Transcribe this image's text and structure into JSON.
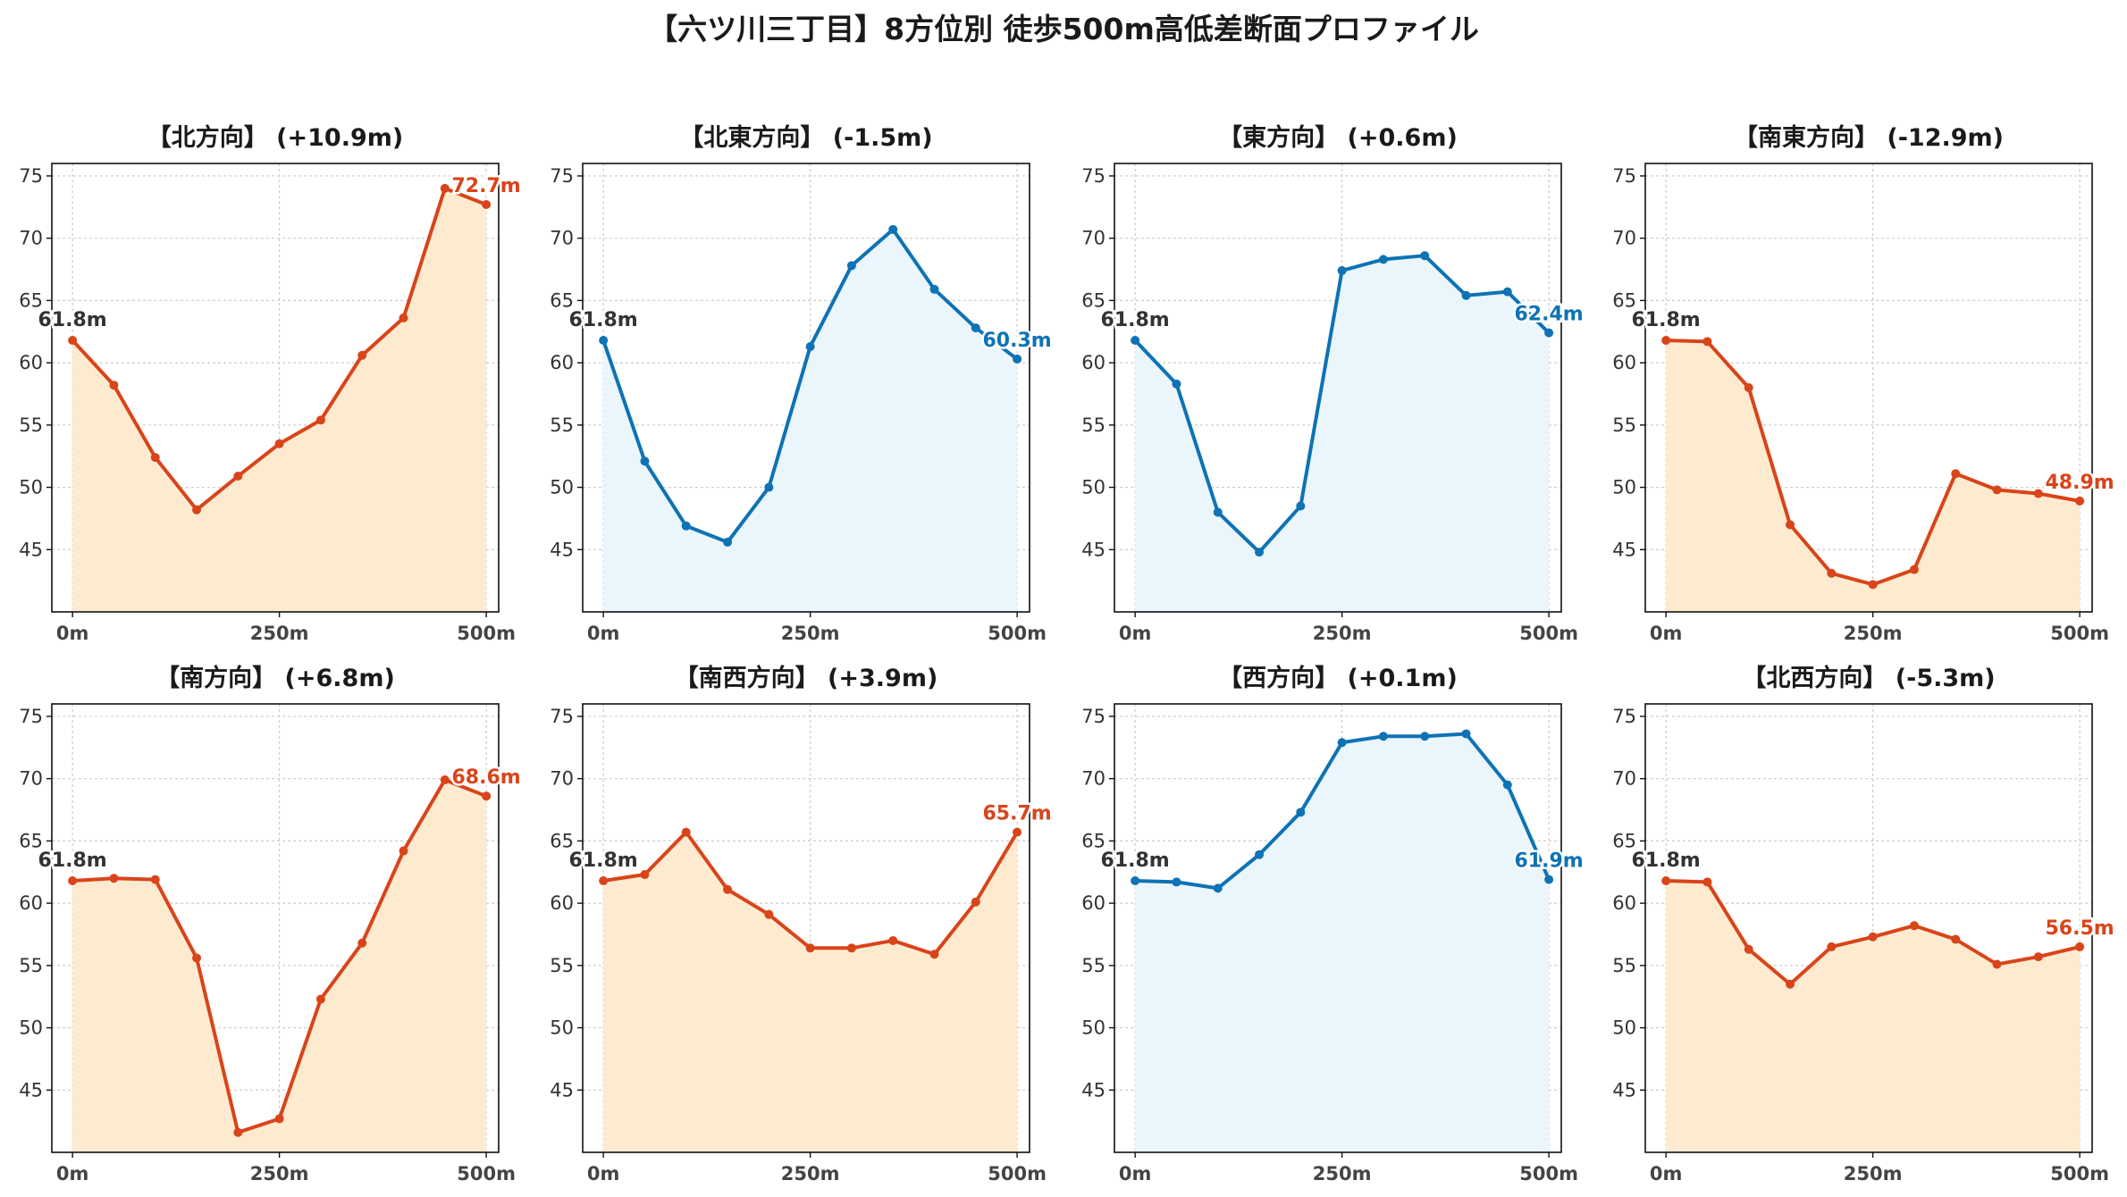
{
  "figure": {
    "title": "【六ツ川三丁目】8方位別 徒歩500m高低差断面プロファイル"
  },
  "colors": {
    "up": "#D9441A",
    "up_fill": "#FEEBCF",
    "down": "#0E72B5",
    "down_fill": "#EAF6FB",
    "start_label": "#333333"
  },
  "axis": {
    "ylim": [
      40,
      76
    ],
    "yticks": [
      45,
      50,
      55,
      60,
      65,
      70,
      75
    ],
    "xlim": [
      -25,
      515
    ],
    "xticks": [
      0,
      250,
      500
    ],
    "xtick_labels": [
      "0m",
      "250m",
      "500m"
    ],
    "grid": true
  },
  "chart_data": [
    {
      "type": "line",
      "title": "【北方向】 (+10.9m)",
      "trend": "up",
      "x": [
        0,
        50,
        100,
        150,
        200,
        250,
        300,
        350,
        400,
        450,
        500
      ],
      "y": [
        61.8,
        58.2,
        52.4,
        48.2,
        50.9,
        53.5,
        55.4,
        60.6,
        63.6,
        74.0,
        72.7
      ],
      "start_label": "61.8m",
      "end_label": "72.7m"
    },
    {
      "type": "line",
      "title": "【北東方向】 (-1.5m)",
      "trend": "down",
      "x": [
        0,
        50,
        100,
        150,
        200,
        250,
        300,
        350,
        400,
        450,
        500
      ],
      "y": [
        61.8,
        52.1,
        46.9,
        45.6,
        50.0,
        61.3,
        67.8,
        70.7,
        65.9,
        62.8,
        60.3
      ],
      "start_label": "61.8m",
      "end_label": "60.3m"
    },
    {
      "type": "line",
      "title": "【東方向】 (+0.6m)",
      "trend": "down",
      "x": [
        0,
        50,
        100,
        150,
        200,
        250,
        300,
        350,
        400,
        450,
        500
      ],
      "y": [
        61.8,
        58.3,
        48.0,
        44.8,
        48.5,
        67.4,
        68.3,
        68.6,
        65.4,
        65.7,
        62.4
      ],
      "start_label": "61.8m",
      "end_label": "62.4m"
    },
    {
      "type": "line",
      "title": "【南東方向】 (-12.9m)",
      "trend": "up",
      "x": [
        0,
        50,
        100,
        150,
        200,
        250,
        300,
        350,
        400,
        450,
        500
      ],
      "y": [
        61.8,
        61.7,
        58.0,
        47.0,
        43.1,
        42.2,
        43.4,
        51.1,
        49.8,
        49.5,
        48.9
      ],
      "start_label": "61.8m",
      "end_label": "48.9m"
    },
    {
      "type": "line",
      "title": "【南方向】 (+6.8m)",
      "trend": "up",
      "x": [
        0,
        50,
        100,
        150,
        200,
        250,
        300,
        350,
        400,
        450,
        500
      ],
      "y": [
        61.8,
        62.0,
        61.9,
        55.6,
        41.6,
        42.7,
        52.3,
        56.8,
        64.2,
        69.9,
        68.6
      ],
      "start_label": "61.8m",
      "end_label": "68.6m"
    },
    {
      "type": "line",
      "title": "【南西方向】 (+3.9m)",
      "trend": "up",
      "x": [
        0,
        50,
        100,
        150,
        200,
        250,
        300,
        350,
        400,
        450,
        500
      ],
      "y": [
        61.8,
        62.3,
        65.7,
        61.1,
        59.1,
        56.4,
        56.4,
        57.0,
        55.9,
        60.1,
        65.7
      ],
      "start_label": "61.8m",
      "end_label": "65.7m"
    },
    {
      "type": "line",
      "title": "【西方向】 (+0.1m)",
      "trend": "down",
      "x": [
        0,
        50,
        100,
        150,
        200,
        250,
        300,
        350,
        400,
        450,
        500
      ],
      "y": [
        61.8,
        61.7,
        61.2,
        63.9,
        67.3,
        72.9,
        73.4,
        73.4,
        73.6,
        69.5,
        61.9
      ],
      "start_label": "61.8m",
      "end_label": "61.9m"
    },
    {
      "type": "line",
      "title": "【北西方向】 (-5.3m)",
      "trend": "up",
      "x": [
        0,
        50,
        100,
        150,
        200,
        250,
        300,
        350,
        400,
        450,
        500
      ],
      "y": [
        61.8,
        61.7,
        56.3,
        53.5,
        56.5,
        57.3,
        58.2,
        57.1,
        55.1,
        55.7,
        56.5
      ],
      "start_label": "61.8m",
      "end_label": "56.5m"
    }
  ]
}
